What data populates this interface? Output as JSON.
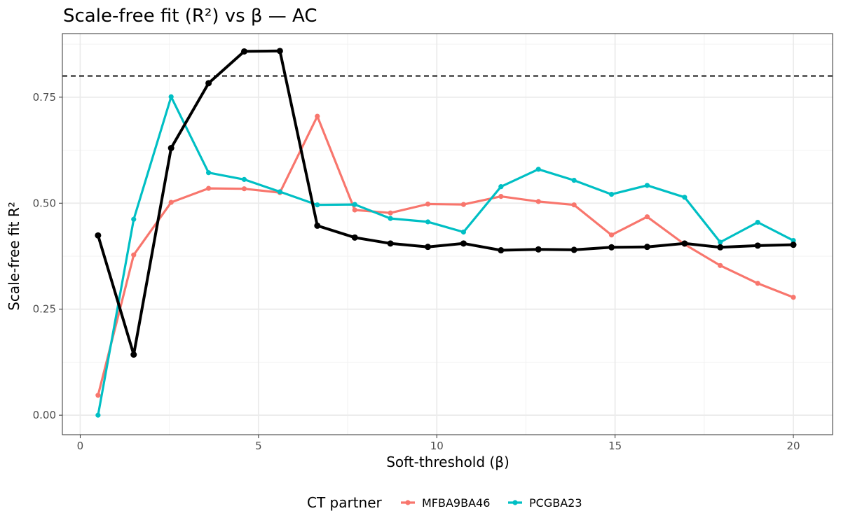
{
  "chart_data": {
    "type": "line",
    "title": "Scale-free fit (R²) vs β — AC",
    "xlabel": "Soft-threshold (β)",
    "ylabel": "Scale-free fit R²",
    "xlim": [
      -0.5,
      21.1
    ],
    "ylim": [
      -0.046,
      0.9
    ],
    "x_ticks": [
      0,
      5,
      10,
      15,
      20
    ],
    "x_tick_labels": [
      "0",
      "5",
      "10",
      "15",
      "20"
    ],
    "y_ticks": [
      0,
      0.25,
      0.5,
      0.75
    ],
    "y_tick_labels": [
      "0.00",
      "0.25",
      "0.50",
      "0.75"
    ],
    "grid": true,
    "reference_line": {
      "y": 0.8,
      "style": "dashed",
      "color": "#000000"
    },
    "legend": {
      "title": "CT partner",
      "position": "bottom"
    },
    "series": [
      {
        "name": "MFBA9BA46",
        "color": "#F8766D",
        "in_legend": true,
        "points": [
          [
            0.5,
            0.047
          ],
          [
            1.5,
            0.378
          ],
          [
            2.55,
            0.502
          ],
          [
            3.6,
            0.535
          ],
          [
            4.6,
            0.534
          ],
          [
            5.6,
            0.525
          ],
          [
            6.65,
            0.705
          ],
          [
            7.7,
            0.484
          ],
          [
            8.7,
            0.477
          ],
          [
            9.75,
            0.498
          ],
          [
            10.75,
            0.497
          ],
          [
            11.8,
            0.516
          ],
          [
            12.85,
            0.504
          ],
          [
            13.85,
            0.496
          ],
          [
            14.9,
            0.425
          ],
          [
            15.9,
            0.468
          ],
          [
            16.95,
            0.403
          ],
          [
            17.95,
            0.353
          ],
          [
            19.0,
            0.311
          ],
          [
            20.0,
            0.278
          ]
        ]
      },
      {
        "name": "PCGBA23",
        "color": "#00BFC4",
        "in_legend": true,
        "points": [
          [
            0.5,
            0.0
          ],
          [
            1.5,
            0.462
          ],
          [
            2.55,
            0.751
          ],
          [
            3.6,
            0.572
          ],
          [
            4.6,
            0.556
          ],
          [
            5.6,
            0.527
          ],
          [
            6.65,
            0.496
          ],
          [
            7.7,
            0.497
          ],
          [
            8.7,
            0.464
          ],
          [
            9.75,
            0.456
          ],
          [
            10.75,
            0.432
          ],
          [
            11.8,
            0.539
          ],
          [
            12.85,
            0.58
          ],
          [
            13.85,
            0.554
          ],
          [
            14.9,
            0.521
          ],
          [
            15.9,
            0.542
          ],
          [
            16.95,
            0.514
          ],
          [
            17.95,
            0.408
          ],
          [
            19.0,
            0.455
          ],
          [
            20.0,
            0.412
          ]
        ]
      },
      {
        "name": "",
        "color": "#000000",
        "in_legend": false,
        "points": [
          [
            0.5,
            0.424
          ],
          [
            1.5,
            0.143
          ],
          [
            2.55,
            0.63
          ],
          [
            3.6,
            0.783
          ],
          [
            4.6,
            0.858
          ],
          [
            5.6,
            0.859
          ],
          [
            6.65,
            0.447
          ],
          [
            7.7,
            0.419
          ],
          [
            8.7,
            0.405
          ],
          [
            9.75,
            0.397
          ],
          [
            10.75,
            0.405
          ],
          [
            11.8,
            0.389
          ],
          [
            12.85,
            0.391
          ],
          [
            13.85,
            0.39
          ],
          [
            14.9,
            0.396
          ],
          [
            15.9,
            0.397
          ],
          [
            16.95,
            0.405
          ],
          [
            17.95,
            0.396
          ],
          [
            19.0,
            0.4
          ],
          [
            20.0,
            0.402
          ]
        ]
      }
    ]
  }
}
